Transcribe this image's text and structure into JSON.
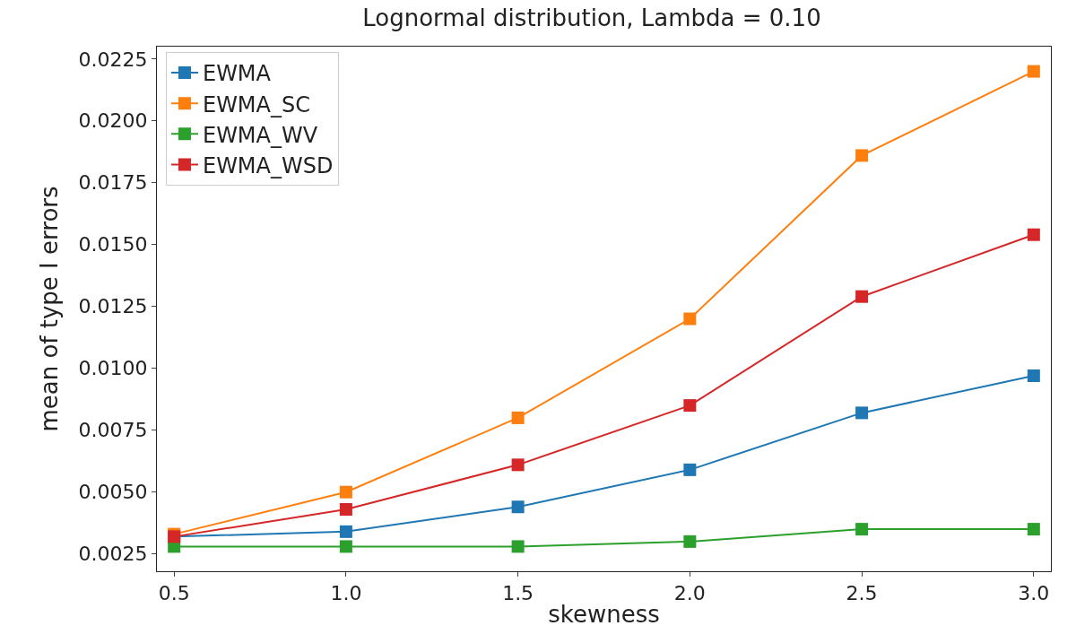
{
  "chart_data": {
    "type": "line",
    "title": "Lognormal distribution, Lambda = 0.10",
    "xlabel": "skewness",
    "ylabel": "mean of type I errors",
    "x": [
      0.5,
      1.0,
      1.5,
      2.0,
      2.5,
      3.0
    ],
    "series": [
      {
        "name": "EWMA",
        "color": "#1f77b4",
        "values": [
          0.0032,
          0.0034,
          0.0044,
          0.0059,
          0.0082,
          0.0097
        ]
      },
      {
        "name": "EWMA_SC",
        "color": "#ff7f0e",
        "values": [
          0.0033,
          0.005,
          0.008,
          0.012,
          0.0186,
          0.022
        ]
      },
      {
        "name": "EWMA_WV",
        "color": "#2ca02c",
        "values": [
          0.0028,
          0.0028,
          0.0028,
          0.003,
          0.0035,
          0.0035
        ]
      },
      {
        "name": "EWMA_WSD",
        "color": "#d62728",
        "values": [
          0.0032,
          0.0043,
          0.0061,
          0.0085,
          0.0129,
          0.0154
        ]
      }
    ],
    "xlim": [
      0.45,
      3.05
    ],
    "ylim": [
      0.0018,
      0.023
    ],
    "xticks": [
      0.5,
      {
        "value": 1,
        "label": "1.0"
      },
      1.5,
      {
        "value": 2,
        "label": "2.0"
      },
      2.5,
      {
        "value": 3,
        "label": "3.0"
      }
    ],
    "yticks": [
      {
        "value": 0.0025,
        "label": "0.0025"
      },
      {
        "value": 0.005,
        "label": "0.0050"
      },
      {
        "value": 0.0075,
        "label": "0.0075"
      },
      {
        "value": 0.01,
        "label": "0.0100"
      },
      {
        "value": 0.0125,
        "label": "0.0125"
      },
      {
        "value": 0.015,
        "label": "0.0150"
      },
      {
        "value": 0.0175,
        "label": "0.0175"
      },
      {
        "value": 0.02,
        "label": "0.0200"
      },
      {
        "value": 0.0225,
        "label": "0.0225"
      }
    ],
    "legend": "top left",
    "marker": "square",
    "line_style": "solid",
    "grid": false
  }
}
